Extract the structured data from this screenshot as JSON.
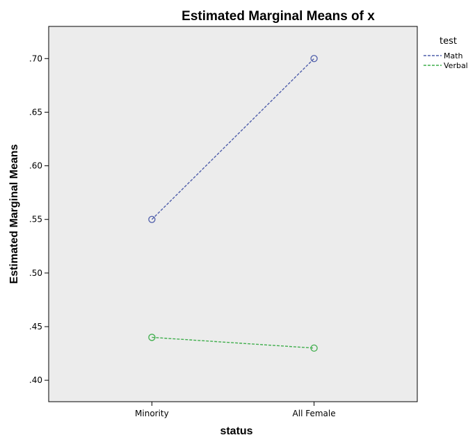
{
  "chart_data": {
    "type": "line",
    "title": "Estimated Marginal Means of x",
    "xlabel": "status",
    "ylabel": "Estimated Marginal Means",
    "categories": [
      "Minority",
      "All Female"
    ],
    "ylim": [
      0.38,
      0.73
    ],
    "yticks": [
      0.4,
      0.45,
      0.5,
      0.55,
      0.6,
      0.65,
      0.7
    ],
    "ytick_labels": [
      ".40",
      ".45",
      ".50",
      ".55",
      ".60",
      ".65",
      ".70"
    ],
    "grid": false,
    "legend": {
      "title": "test",
      "placement": "right"
    },
    "series": [
      {
        "name": "Math",
        "values": [
          0.55,
          0.7
        ],
        "color": "#4f5eaa"
      },
      {
        "name": "Verbal",
        "values": [
          0.44,
          0.43
        ],
        "color": "#3fae4c"
      }
    ],
    "colors": {
      "plot_background": "#ececec",
      "axis": "#000000"
    }
  }
}
